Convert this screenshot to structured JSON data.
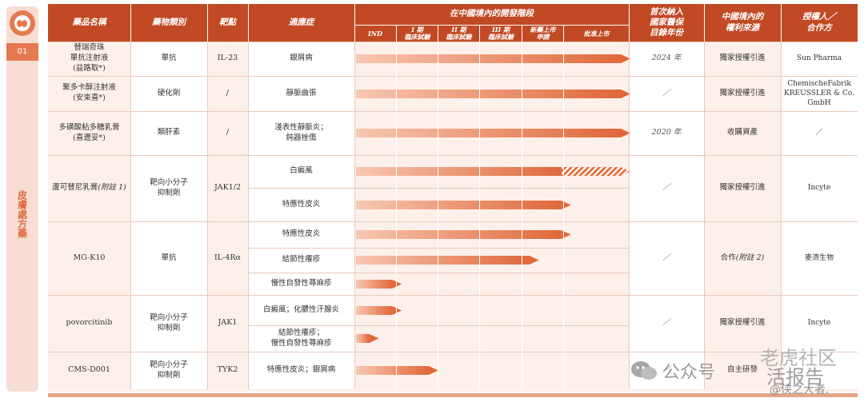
{
  "sidebar": {
    "section_number": "01",
    "section_title": "皮膚處方藥"
  },
  "headers": {
    "drug_name": "藥品名稱",
    "drug_class": "藥物類別",
    "target": "靶點",
    "indication": "適應症",
    "phase_group": "在中國境內的開發階段",
    "phases": [
      "IND",
      "I 期\n臨床試驗",
      "II 期\n臨床試驗",
      "III 期\n臨床試驗",
      "新藥上市\n申請",
      "批准上市"
    ],
    "nrdl_year": "首次納入\n國家醫保\n目錄年份",
    "rights_source": "中國境內的\n權利來源",
    "licensor": "授權人／\n合作方"
  },
  "colors": {
    "header": "#c14a24",
    "bar_start": "#f7c7b1",
    "bar_end": "#e0683a",
    "row_pink": "#fdf0ea"
  },
  "drugs": [
    {
      "name": "替瑞奇珠\n單抗注射液\n(益路取*)",
      "name_italic": false,
      "drug_class": "單抗",
      "target": "IL-23",
      "nrdl": "2024 年",
      "rights": "獨家授權引進",
      "licensor": "Sun Pharma",
      "indications": [
        {
          "text": "銀屑病",
          "progress": 6,
          "hatched": false
        }
      ]
    },
    {
      "name": "聚多卡醇注射液\n(安束喜*)",
      "drug_class": "硬化劑",
      "target": "/",
      "nrdl": "／",
      "rights": "獨家授權引進",
      "licensor": "ChemischeFabrik\nKREUSSLER & Co.\nGmbH",
      "indications": [
        {
          "text": "靜脈曲張",
          "progress": 6,
          "hatched": false
        }
      ]
    },
    {
      "name": "多磺酸粘多糖乳膏\n(喜遼妥*)",
      "drug_class": "類肝素",
      "target": "/",
      "nrdl": "2020 年",
      "rights": "收購資產",
      "licensor": "／",
      "indications": [
        {
          "text": "淺表性靜脈炎；\n鈍器挫傷",
          "progress": 6,
          "hatched": false
        }
      ]
    },
    {
      "name": "蘆可替尼乳膏\n(附註 1)",
      "drug_class": "靶向小分子\n抑制劑",
      "target": "JAK1/2",
      "nrdl": "／",
      "rights": "獨家授權引進",
      "licensor": "Incyte",
      "indications": [
        {
          "text": "白癜風",
          "progress": 6,
          "hatched": true
        },
        {
          "text": "特應性皮炎",
          "progress": 4.7,
          "hatched": false
        }
      ]
    },
    {
      "name": "MG-K10",
      "drug_class": "單抗",
      "target": "IL-4Rα",
      "nrdl": "／",
      "rights": "合作 (附註 2)",
      "licensor": "麥濟生物",
      "indications": [
        {
          "text": "特應性皮炎",
          "progress": 4.7,
          "hatched": false
        },
        {
          "text": "結節性癢疹",
          "progress": 4.0,
          "hatched": false
        },
        {
          "text": "慢性自發性蕁麻疹",
          "progress": 1.0,
          "hatched": false
        }
      ]
    },
    {
      "name": "povorcitinib",
      "drug_class": "靶向小分子\n抑制劑",
      "target": "JAK1",
      "nrdl": "／",
      "rights": "獨家授權引進",
      "licensor": "Incyte",
      "indications": [
        {
          "text": "白癜風；化膿性汗腺炎",
          "progress": 1.0,
          "hatched": false
        },
        {
          "text": "結節性癢疹；\n慢性自發性蕁麻疹",
          "progress": 0.5,
          "hatched": false
        }
      ]
    },
    {
      "name": "CMS-D001",
      "drug_class": "靶向小分子\n抑制劑",
      "target": "TYK2",
      "nrdl": "／",
      "rights": "自主研發",
      "licensor": "",
      "indications": [
        {
          "text": "特應性皮炎；銀屑病",
          "progress": 1.8,
          "hatched": false
        }
      ]
    }
  ],
  "watermarks": {
    "wechat": "公众号",
    "site_top": "老虎社区",
    "site_mid": "活报告",
    "author": "@侠之大者."
  }
}
